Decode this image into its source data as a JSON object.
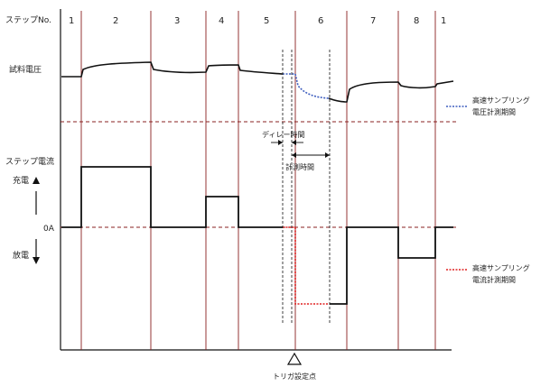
{
  "labels": {
    "step_no": "ステップNo.",
    "sample_voltage": "試料電圧",
    "step_current": "ステップ電流",
    "charge": "充電",
    "zero_amp": "0A",
    "discharge": "放電",
    "delay_time": "ディレー時間",
    "measure_time": "計測時間",
    "trigger_point": "トリガ設定点",
    "legend_voltage_line1": "高速サンプリング",
    "legend_voltage_line2": "電圧計測期間",
    "legend_current_line1": "高速サンプリング",
    "legend_current_line2": "電流計測期間"
  },
  "steps": [
    "1",
    "2",
    "3",
    "4",
    "5",
    "6",
    "7",
    "8",
    "1"
  ],
  "colors": {
    "line": "#111111",
    "divider": "#8a2020",
    "voltage_highlight": "#3f5fbf",
    "current_highlight": "#e02020",
    "grid": "#888888"
  }
}
